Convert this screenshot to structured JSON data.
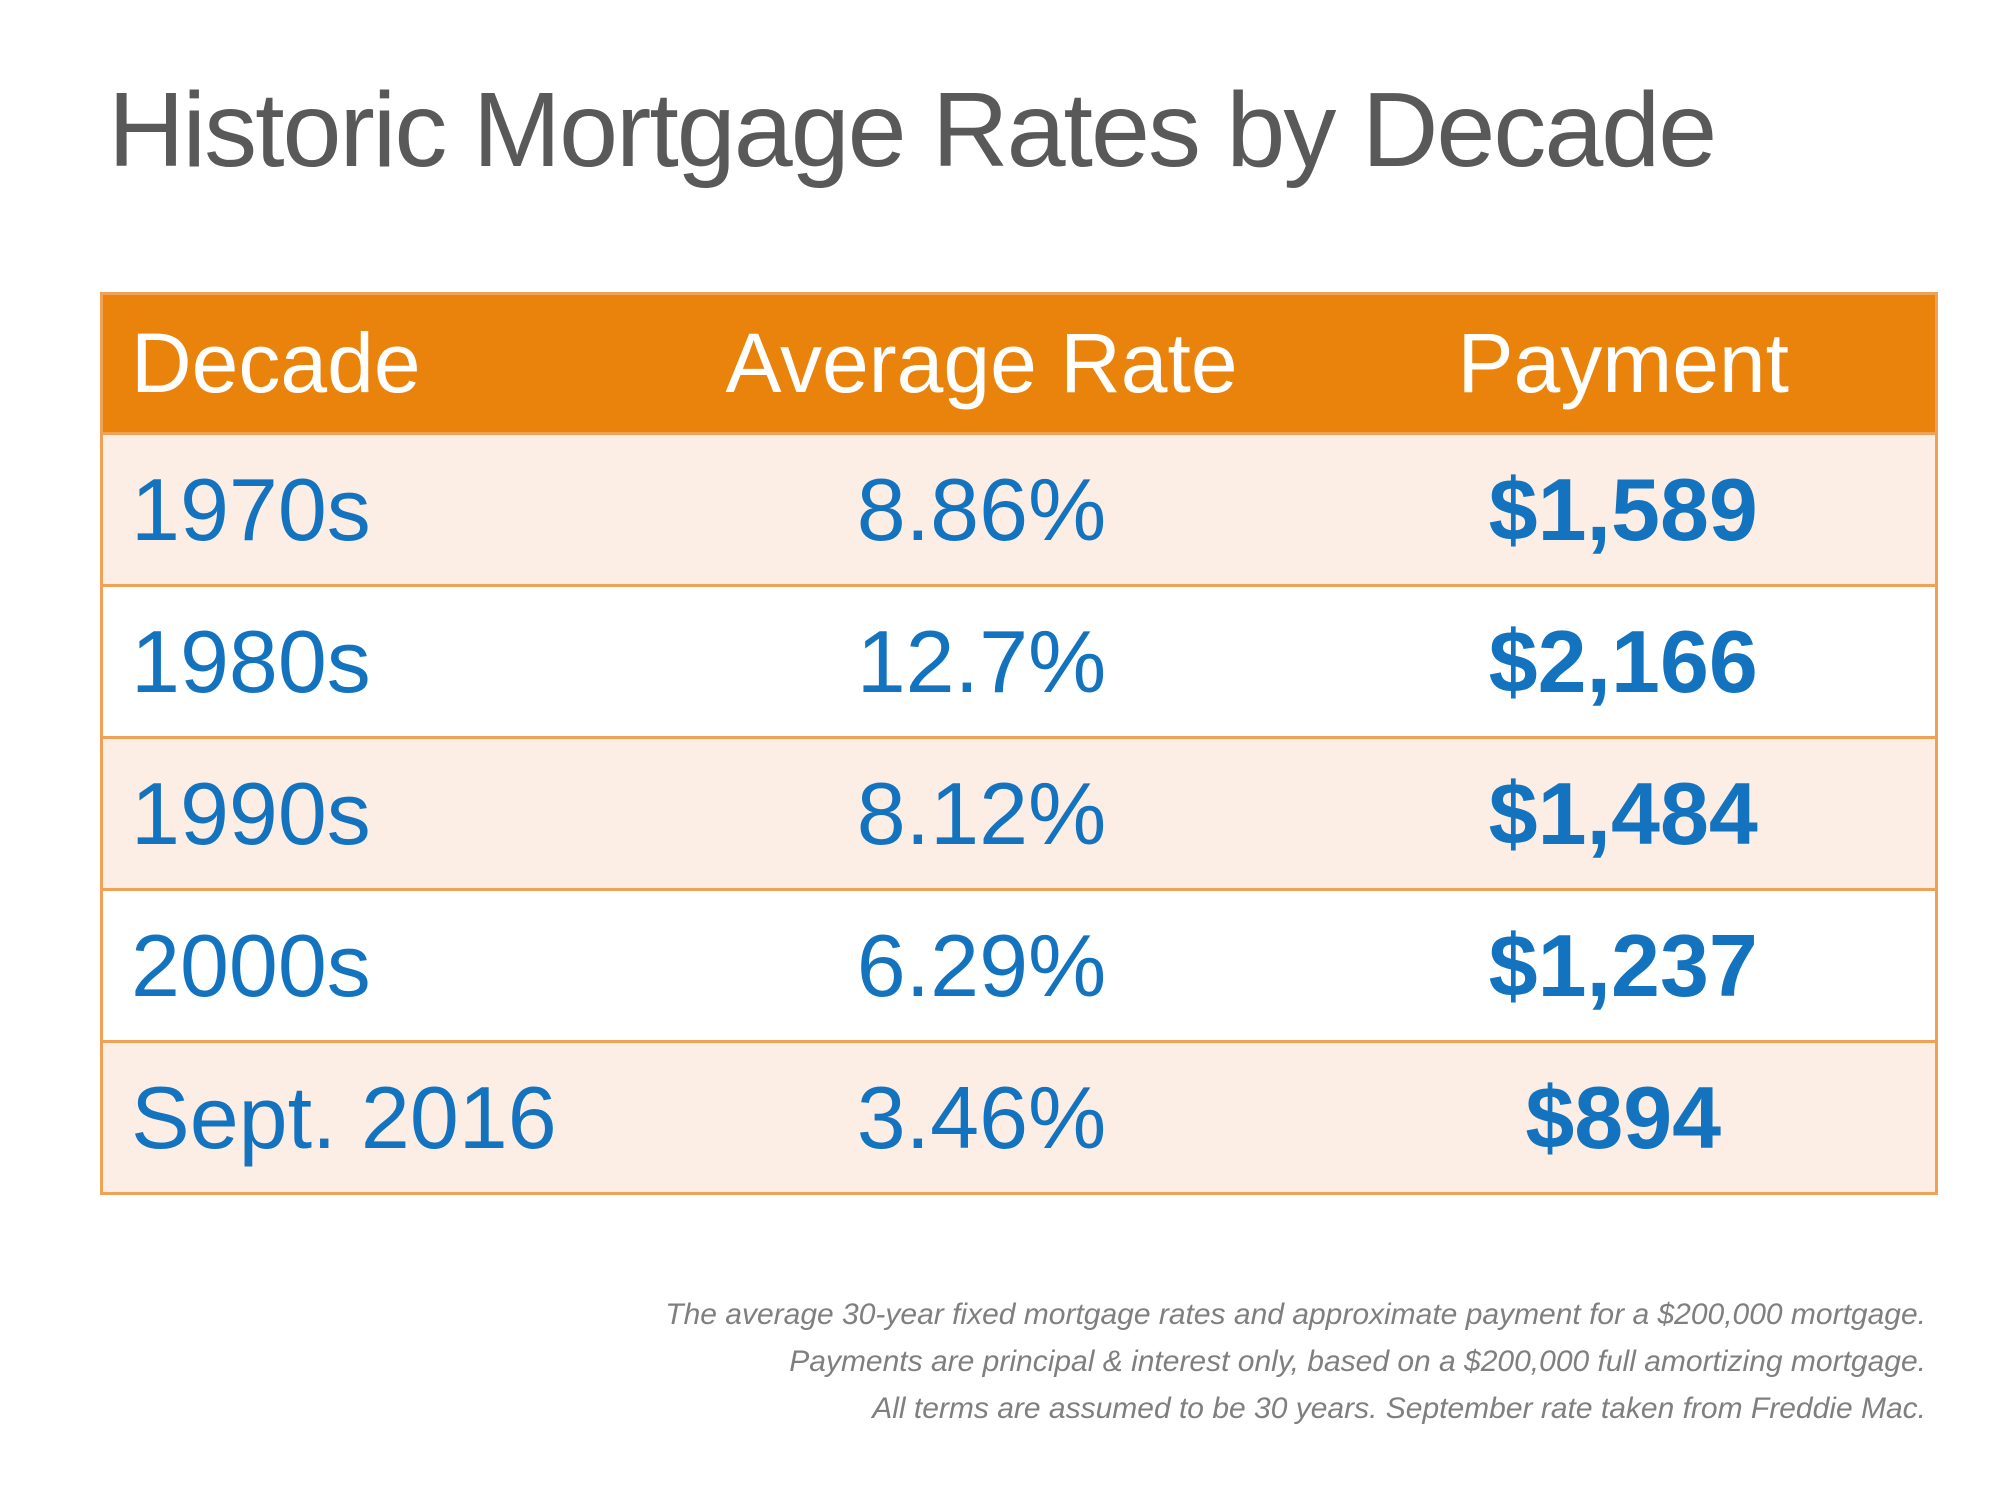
{
  "title": "Historic Mortgage Rates by Decade",
  "table": {
    "headers": {
      "decade": "Decade",
      "rate": "Average Rate",
      "payment": "Payment"
    },
    "rows": [
      {
        "decade": "1970s",
        "rate": "8.86%",
        "payment": "$1,589"
      },
      {
        "decade": "1980s",
        "rate": "12.7%",
        "payment": "$2,166"
      },
      {
        "decade": "1990s",
        "rate": "8.12%",
        "payment": "$1,484"
      },
      {
        "decade": "2000s",
        "rate": "6.29%",
        "payment": "$1,237"
      },
      {
        "decade": "Sept. 2016",
        "rate": "3.46%",
        "payment": "$894"
      }
    ]
  },
  "chart_data": {
    "type": "table",
    "title": "Historic Mortgage Rates by Decade",
    "columns": [
      "Decade",
      "Average Rate",
      "Payment"
    ],
    "rows": [
      [
        "1970s",
        "8.86%",
        "$1,589"
      ],
      [
        "1980s",
        "12.7%",
        "$2,166"
      ],
      [
        "1990s",
        "8.12%",
        "$1,484"
      ],
      [
        "2000s",
        "6.29%",
        "$1,237"
      ],
      [
        "Sept. 2016",
        "3.46%",
        "$894"
      ]
    ],
    "average_rate_percent": [
      8.86,
      12.7,
      8.12,
      6.29,
      3.46
    ],
    "payment_usd": [
      1589,
      2166,
      1484,
      1237,
      894
    ]
  },
  "footnote": {
    "line1": "The average 30-year fixed mortgage rates and approximate payment for a $200,000 mortgage.",
    "line2": "Payments are principal & interest only, based on a $200,000 full amortizing mortgage.",
    "line3": "All terms are assumed to be 30 years. September rate taken from Freddie Mac."
  },
  "colors": {
    "header_bg": "#E9830C",
    "row_alt_bg": "#FCEEE5",
    "row_border": "#F0A155",
    "value_text": "#1373BF",
    "header_text": "#FFFFFF",
    "title_text": "#595959",
    "footnote_text": "#7F7F7F"
  }
}
